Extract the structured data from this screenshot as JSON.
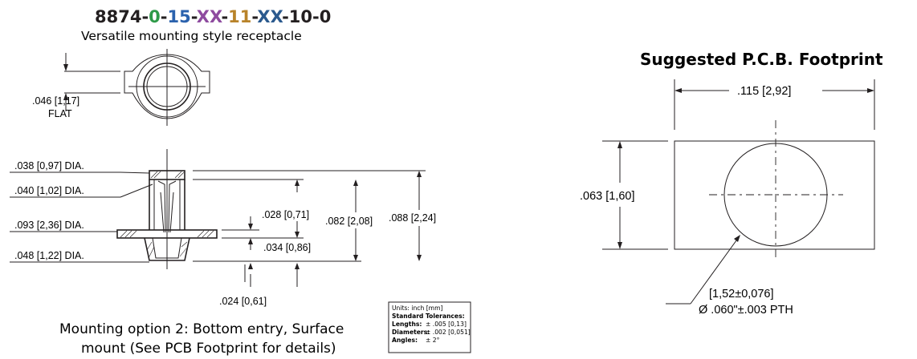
{
  "part_number": {
    "segments": [
      {
        "text": "8874",
        "color": "#231f20"
      },
      {
        "text": "-",
        "color": "#231f20"
      },
      {
        "text": "0",
        "color": "#2e9a48"
      },
      {
        "text": "-",
        "color": "#231f20"
      },
      {
        "text": "15",
        "color": "#2b62ad"
      },
      {
        "text": "-",
        "color": "#231f20"
      },
      {
        "text": "XX",
        "color": "#8e4b9f"
      },
      {
        "text": "-",
        "color": "#231f20"
      },
      {
        "text": "11",
        "color": "#b8832a"
      },
      {
        "text": "-",
        "color": "#231f20"
      },
      {
        "text": "XX",
        "color": "#2b5a8e"
      },
      {
        "text": "-",
        "color": "#231f20"
      },
      {
        "text": "10",
        "color": "#231f20"
      },
      {
        "text": "-",
        "color": "#231f20"
      },
      {
        "text": "0",
        "color": "#231f20"
      }
    ]
  },
  "subtitle": "Versatile mounting style receptacle",
  "top_view": {
    "flat_dim": ".046 [1,17]",
    "flat_label": "FLAT"
  },
  "side_view": {
    "dims": {
      "d038": ".038 [0,97] DIA.",
      "d040": ".040 [1,02] DIA.",
      "d093": ".093 [2,36] DIA.",
      "d048": ".048 [1,22] DIA.",
      "d028": ".028 [0,71]",
      "d034": ".034 [0,86]",
      "d082": ".082 [2,08]",
      "d088": ".088 [2,24]",
      "d024": ".024 [0,61]"
    }
  },
  "tolerances": {
    "units": "Units: inch [mm]",
    "heading": "Standard Tolerances:",
    "lengths_label": "Lengths:",
    "lengths_value": "± .005 [0,13]",
    "diameters_label": "Diameters:",
    "diameters_value": "± .002 [0,051]",
    "angles_label": "Angles:",
    "angles_value": "± 2°"
  },
  "caption": {
    "line1": "Mounting option 2: Bottom entry, Surface",
    "line2": "mount (See PCB Footprint for details)"
  },
  "pcb": {
    "title": "Suggested P.C.B. Footprint",
    "width_dim": ".115 [2,92]",
    "height_dim": ".063 [1,60]",
    "hole_dim_metric": "[1,52±0,076]",
    "hole_dim_inch": "Ø .060\"±.003 PTH"
  }
}
